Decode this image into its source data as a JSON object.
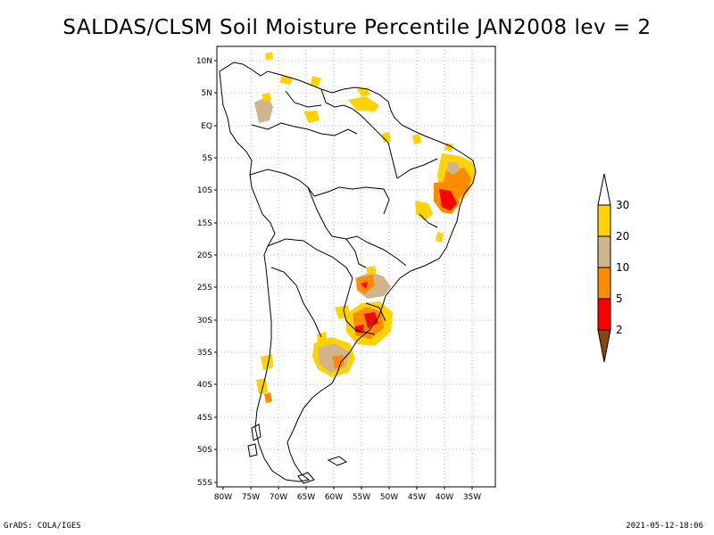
{
  "title": "SALDAS/CLSM Soil Moisture Percentile JAN2008 lev = 2",
  "lat_labels": [
    "10N",
    "5N",
    "EQ",
    "5S",
    "10S",
    "15S",
    "20S",
    "25S",
    "30S",
    "35S",
    "40S",
    "45S",
    "50S",
    "55S"
  ],
  "lon_labels": [
    "80W",
    "75W",
    "70W",
    "65W",
    "60W",
    "55W",
    "50W",
    "45W",
    "40W",
    "35W"
  ],
  "colorbar": {
    "labels": [
      "30",
      "20",
      "10",
      "5",
      "2"
    ],
    "colors": {
      "above": "#ffffff",
      "c20_30": "#ffd200",
      "c10_20": "#d2b48c",
      "c5_10": "#ff8c00",
      "c2_5": "#ff0000",
      "below": "#8b4513"
    }
  },
  "footer": {
    "left": "GrADS: COLA/IGES",
    "right": "2021-05-12-18:06"
  }
}
